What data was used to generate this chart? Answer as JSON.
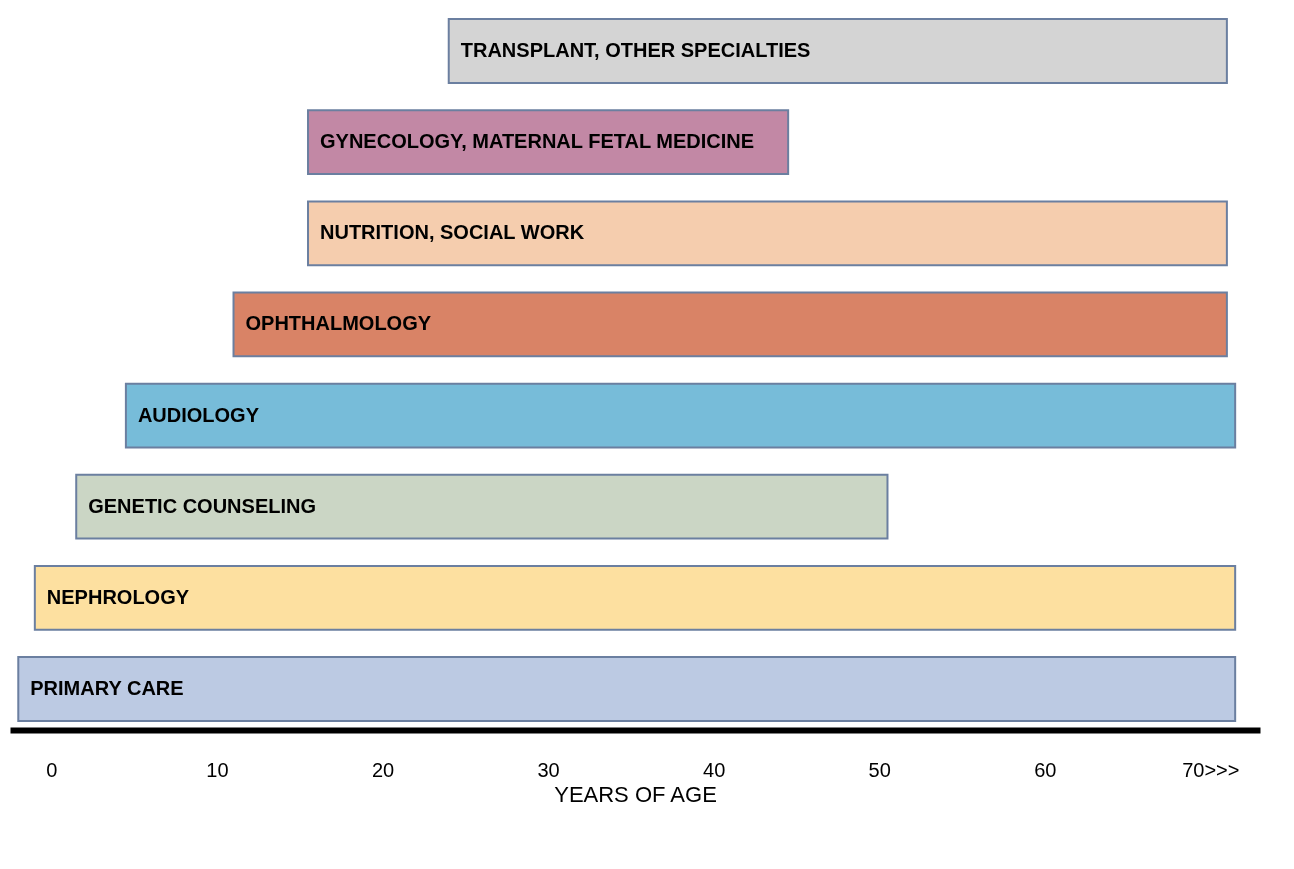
{
  "chart_data": {
    "type": "bar",
    "orientation": "horizontal",
    "xlabel": "YEARS OF AGE",
    "categories": [
      "TRANSPLANT, OTHER SPECIALTIES",
      "GYNECOLOGY, MATERNAL FETAL MEDICINE",
      "NUTRITION, SOCIAL WORK",
      "OPHTHALMOLOGY",
      "AUDIOLOGY",
      "GENETIC COUNSELING",
      "NEPHROLOGY",
      "PRIMARY CARE"
    ],
    "base": [
      24,
      15.5,
      15.5,
      11,
      4.5,
      1.5,
      -1,
      -2
    ],
    "values": [
      47,
      29,
      55.5,
      60,
      67,
      49,
      72.5,
      73.5
    ],
    "colors": [
      "#d4d4d4",
      "#c288a5",
      "#f5cdae",
      "#d98366",
      "#77bcd9",
      "#cbd6c5",
      "#fde0a0",
      "#bccae3"
    ],
    "xlim": [
      -2.5,
      73
    ],
    "xticks": [
      0,
      10,
      20,
      30,
      40,
      50,
      60,
      {
        "value": 70,
        "label": "70>>>"
      }
    ],
    "tick_labels": "x",
    "grid": false,
    "legend": false
  }
}
